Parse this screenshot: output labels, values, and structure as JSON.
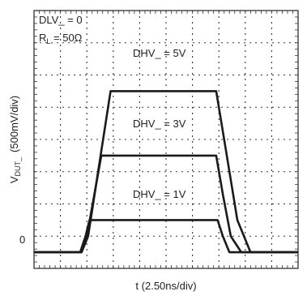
{
  "chart_data": {
    "type": "line",
    "x_unit_label": "t (2.50ns/div)",
    "y_unit_label": "(500mV/div)",
    "y_symbol": "V",
    "y_symbol_sub": "DUT_",
    "zero_label": "0",
    "conditions": {
      "line1": "DLV_ = 0",
      "line2_symbol": "R",
      "line2_sub": "L",
      "line2_value": " = 50Ω"
    },
    "grid": true,
    "x_divisions": 10,
    "y_divisions": 8,
    "xlim": [
      0,
      10
    ],
    "ylim": [
      -0.5,
      7.5
    ],
    "series": [
      {
        "name": "DHV_ = 5V",
        "x": [
          0,
          1.8,
          2.05,
          2.9,
          6.9,
          7.3,
          7.7,
          8.2,
          10
        ],
        "y": [
          0,
          0,
          0.5,
          5.0,
          5.0,
          3.0,
          1.0,
          0,
          0
        ]
      },
      {
        "name": "DHV_ = 3V",
        "x": [
          0,
          1.8,
          2.0,
          2.55,
          6.9,
          7.15,
          7.45,
          7.85,
          10
        ],
        "y": [
          0,
          0,
          0.5,
          3.0,
          3.0,
          1.8,
          0.5,
          0,
          0
        ]
      },
      {
        "name": "DHV_ = 1V",
        "x": [
          0,
          1.75,
          1.95,
          2.1,
          6.95,
          7.15,
          7.4,
          10
        ],
        "y": [
          0,
          0,
          0.5,
          1.0,
          1.0,
          0.5,
          0,
          0
        ]
      }
    ]
  }
}
